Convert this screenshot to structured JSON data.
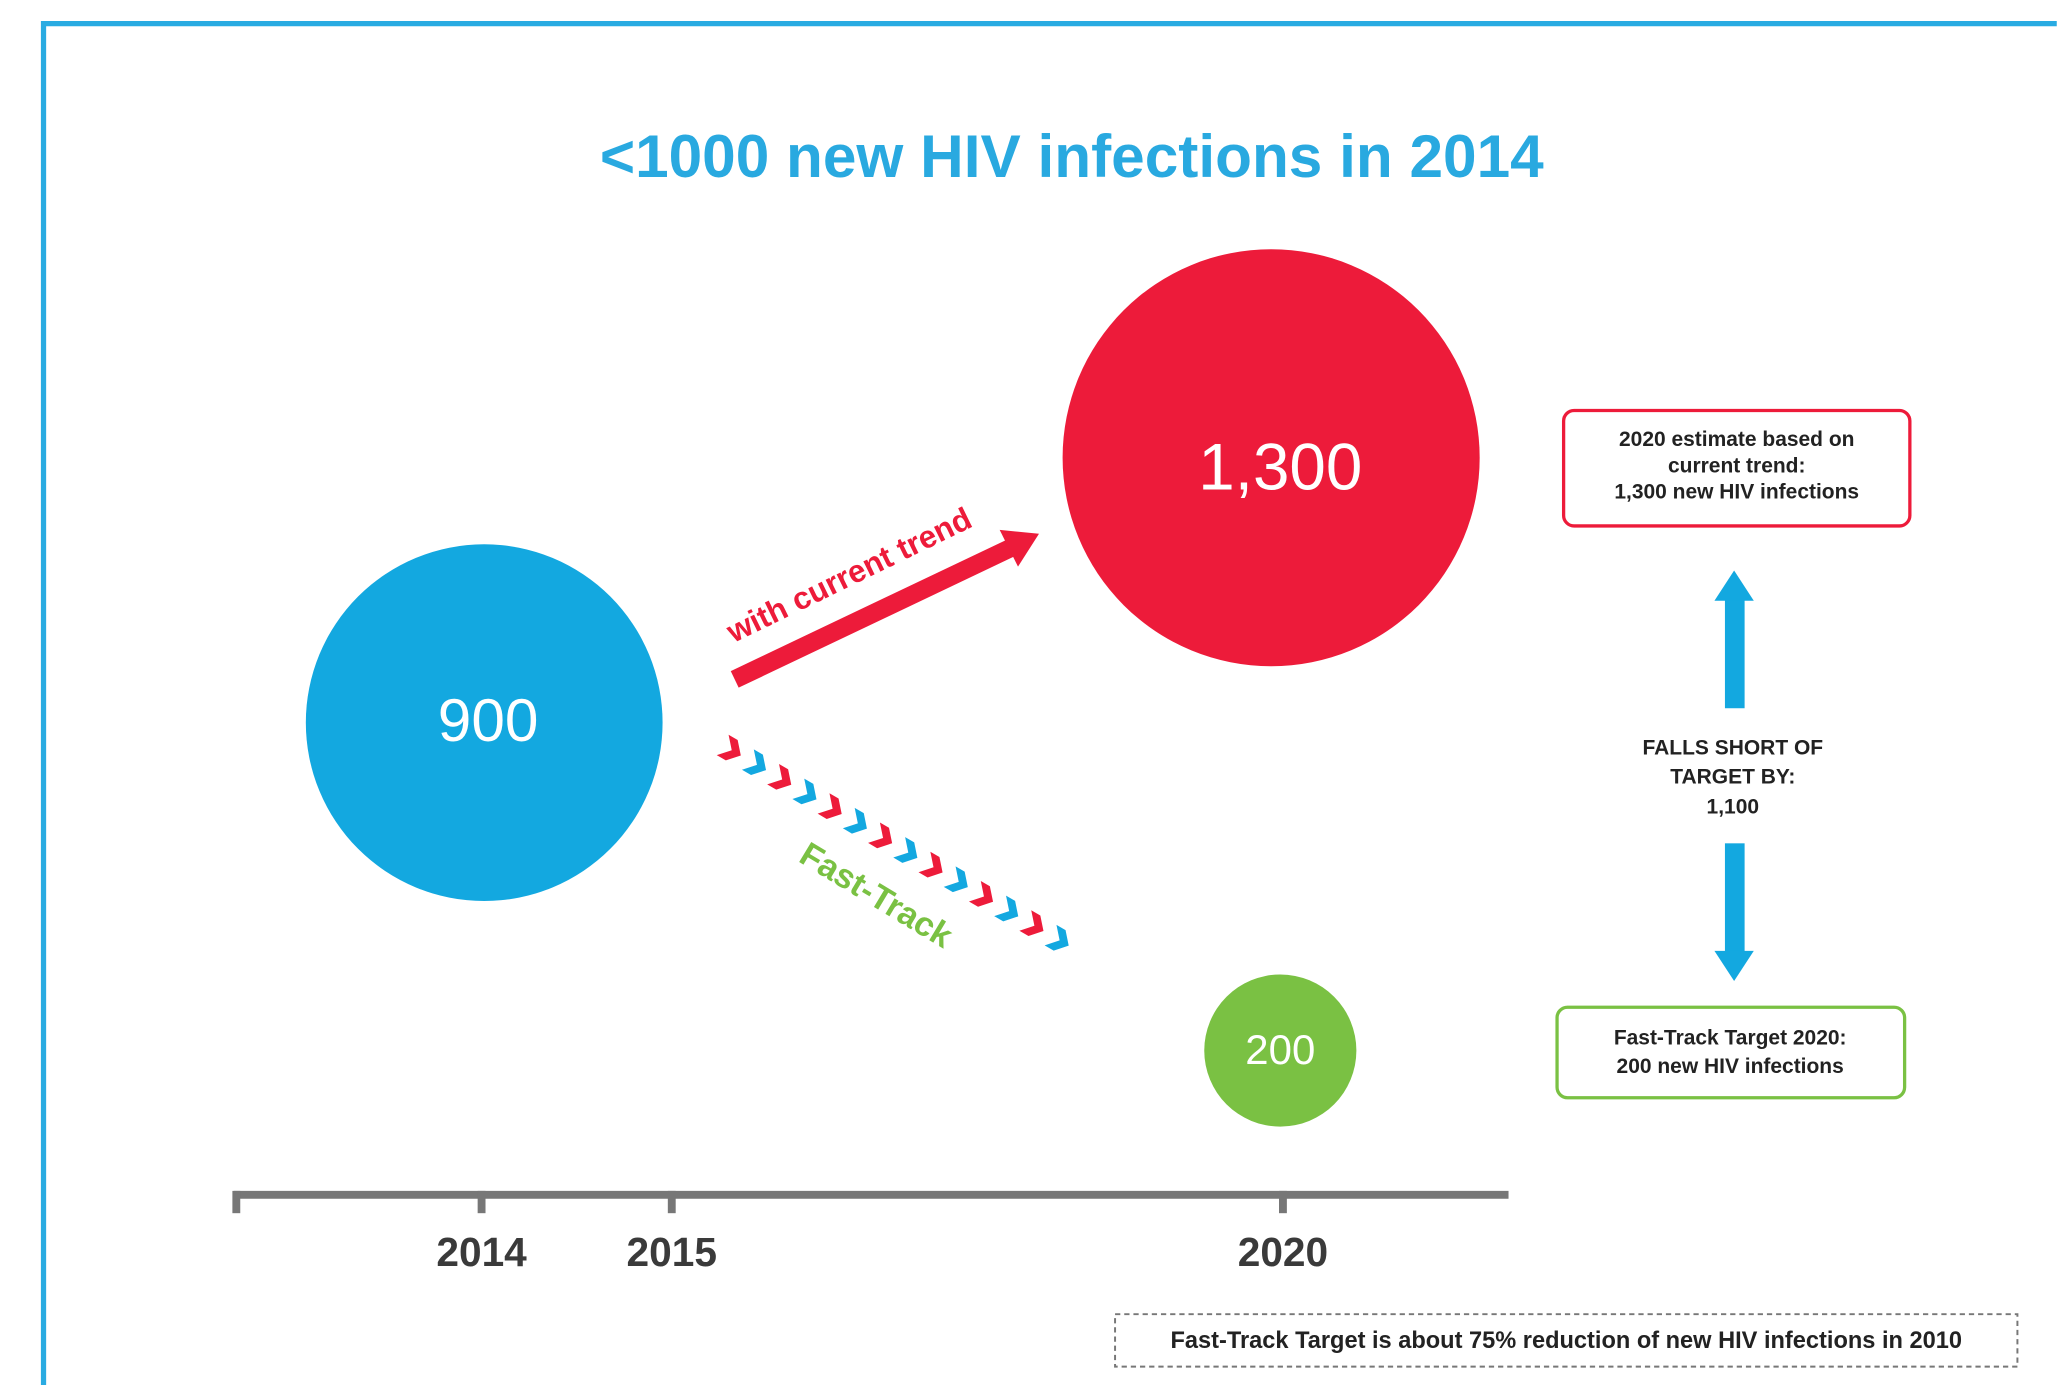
{
  "title": "<1000 new HIV infections in 2014",
  "bubbles": [
    "900",
    "1,300",
    "200"
  ],
  "arrows": {
    "current_trend": "with current trend",
    "fast_track": "Fast-Track"
  },
  "axis_labels": [
    "2014",
    "2015",
    "2020"
  ],
  "estimate_box": [
    "2020 estimate based on",
    "current trend:",
    "1,300 new HIV infections"
  ],
  "shortfall": [
    "FALLS SHORT OF",
    "TARGET BY:",
    "1,100"
  ],
  "target_box": [
    "Fast-Track Target 2020:",
    "200 new HIV infections"
  ],
  "footnote": "Fast-Track Target is about 75% reduction of new HIV infections in 2010"
}
